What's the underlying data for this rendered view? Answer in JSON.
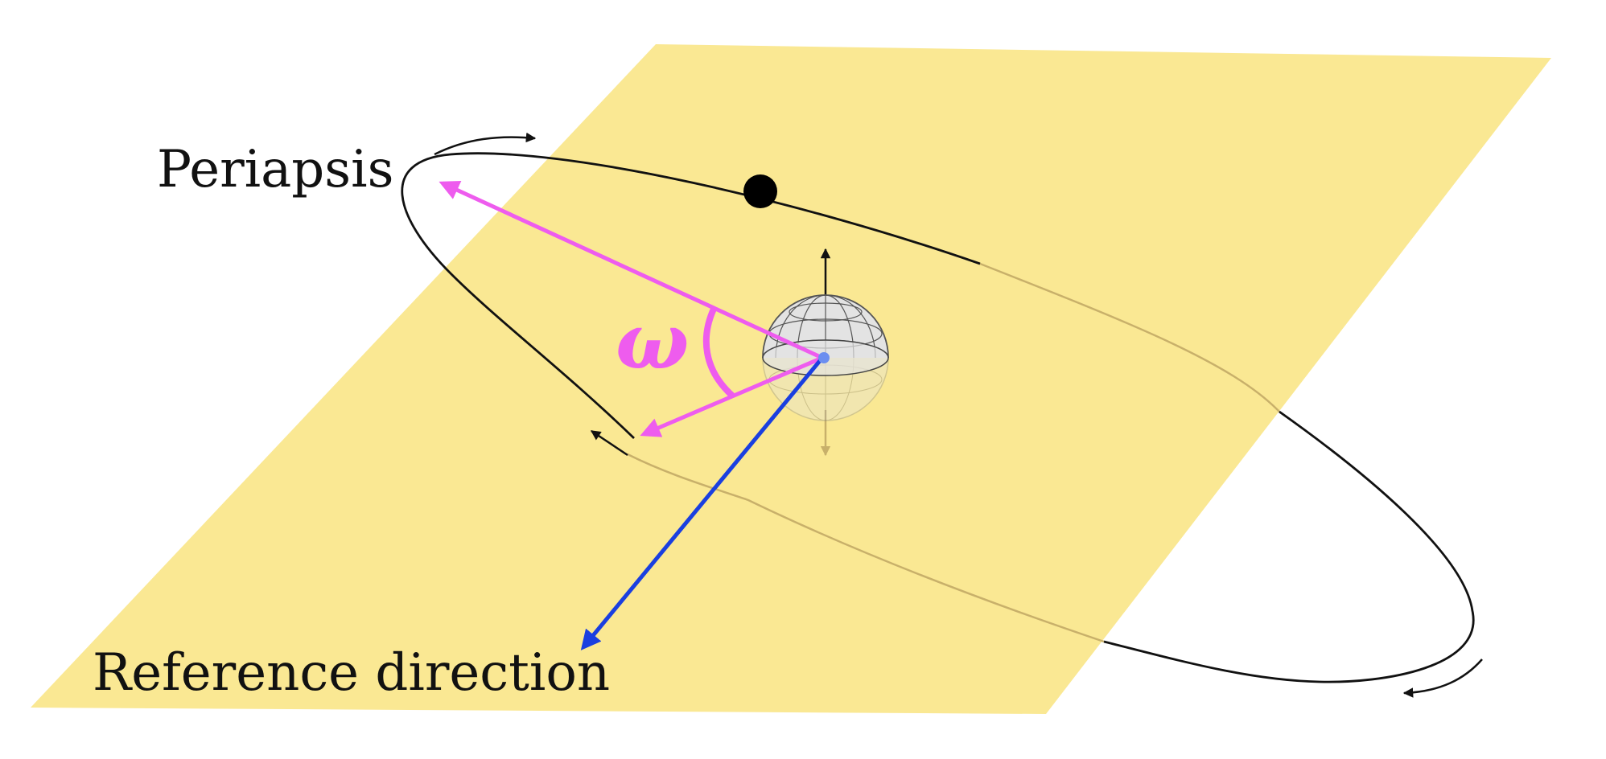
{
  "labels": {
    "periapsis": "Periapsis",
    "reference_direction": "Reference direction",
    "argument_symbol": "ω"
  },
  "colors": {
    "plane": "#fae893",
    "orbit": "#111111",
    "hidden_orbit": "#c8b06a",
    "argument": "#ee5cee",
    "reference": "#1a3fe0",
    "planet": "#e3e3e3",
    "grid": "#555555",
    "hidden_arrow": "#c8b06a"
  }
}
